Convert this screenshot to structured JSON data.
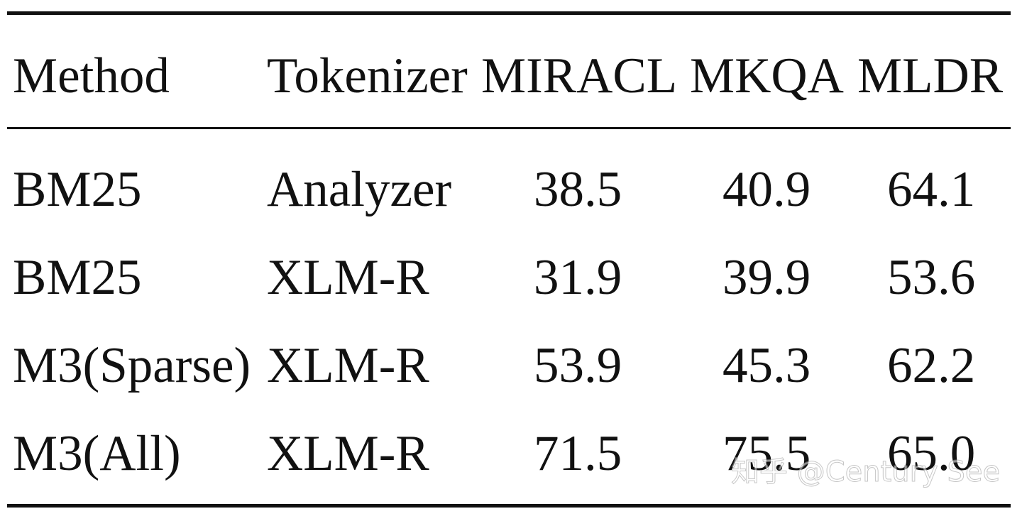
{
  "table": {
    "header": [
      "Method",
      "Tokenizer",
      "MIRACL",
      "MKQA",
      "MLDR"
    ],
    "rows": [
      [
        "BM25",
        "Analyzer",
        "38.5",
        "40.9",
        "64.1"
      ],
      [
        "BM25",
        "XLM-R",
        "31.9",
        "39.9",
        "53.6"
      ],
      [
        "M3(Sparse)",
        "XLM-R",
        "53.9",
        "45.3",
        "62.2"
      ],
      [
        "M3(All)",
        "XLM-R",
        "71.5",
        "75.5",
        "65.0"
      ]
    ]
  },
  "watermark": "知乎 @Century See"
}
